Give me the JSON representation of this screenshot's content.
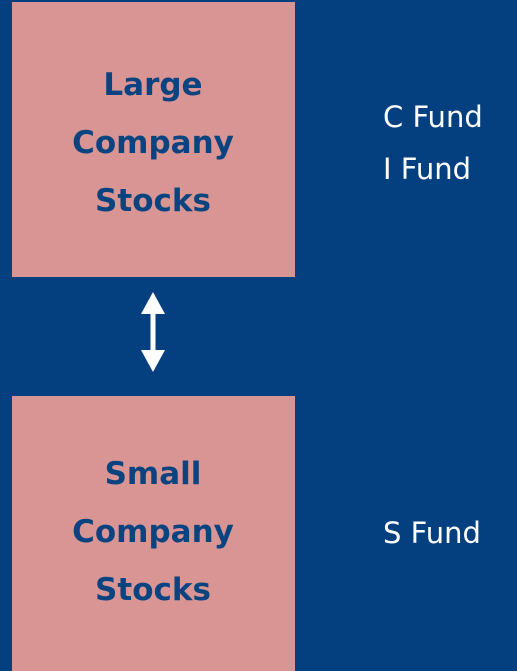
{
  "nodes": [
    {
      "label": [
        "Large",
        "Company",
        "Stocks"
      ],
      "funds": [
        "C Fund",
        "I Fund"
      ]
    },
    {
      "label": [
        "Small",
        "Company",
        "Stocks"
      ],
      "funds": [
        "S Fund"
      ]
    }
  ]
}
